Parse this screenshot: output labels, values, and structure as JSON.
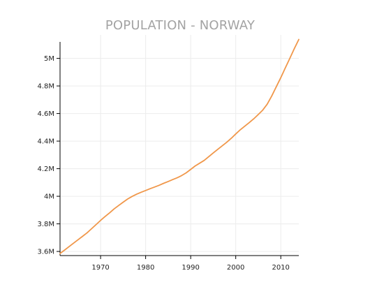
{
  "chart_data": {
    "type": "line",
    "title": "POPULATION - NORWAY",
    "xlabel": "",
    "ylabel": "",
    "xlim": [
      1961,
      2014
    ],
    "ylim": [
      3570000,
      5170000
    ],
    "x_ticks": [
      1970,
      1980,
      1990,
      2000,
      2010
    ],
    "x_tick_labels": [
      "1970",
      "1980",
      "1990",
      "2000",
      "2010"
    ],
    "y_ticks": [
      3600000,
      3800000,
      4000000,
      4200000,
      4400000,
      4600000,
      4800000,
      5000000
    ],
    "y_tick_labels": [
      "3.6M",
      "3.8M",
      "4M",
      "4.2M",
      "4.4M",
      "4.6M",
      "4.8M",
      "5M"
    ],
    "grid": true,
    "line_color": "#f0974a",
    "series": [
      {
        "x": [
          1961,
          1962,
          1963,
          1964,
          1965,
          1966,
          1967,
          1968,
          1969,
          1970,
          1971,
          1972,
          1973,
          1974,
          1975,
          1976,
          1977,
          1978,
          1979,
          1980,
          1981,
          1982,
          1983,
          1984,
          1985,
          1986,
          1987,
          1988,
          1989,
          1990,
          1991,
          1992,
          1993,
          1994,
          1995,
          1996,
          1997,
          1998,
          1999,
          2000,
          2001,
          2002,
          2003,
          2004,
          2005,
          2006,
          2007,
          2008,
          2009,
          2010,
          2011,
          2012,
          2013,
          2014
        ],
        "values": [
          3585000,
          3610000,
          3635000,
          3660000,
          3685000,
          3710000,
          3735000,
          3765000,
          3795000,
          3825000,
          3853000,
          3880000,
          3908000,
          3933000,
          3957000,
          3980000,
          3999000,
          4015000,
          4029000,
          4042000,
          4055000,
          4067000,
          4080000,
          4094000,
          4107000,
          4121000,
          4134000,
          4150000,
          4170000,
          4195000,
          4220000,
          4240000,
          4260000,
          4287000,
          4314000,
          4340000,
          4366000,
          4392000,
          4420000,
          4452000,
          4482000,
          4508000,
          4534000,
          4562000,
          4593000,
          4625000,
          4668000,
          4728000,
          4794000,
          4860000,
          4930000,
          5000000,
          5070000,
          5137000
        ]
      }
    ]
  }
}
